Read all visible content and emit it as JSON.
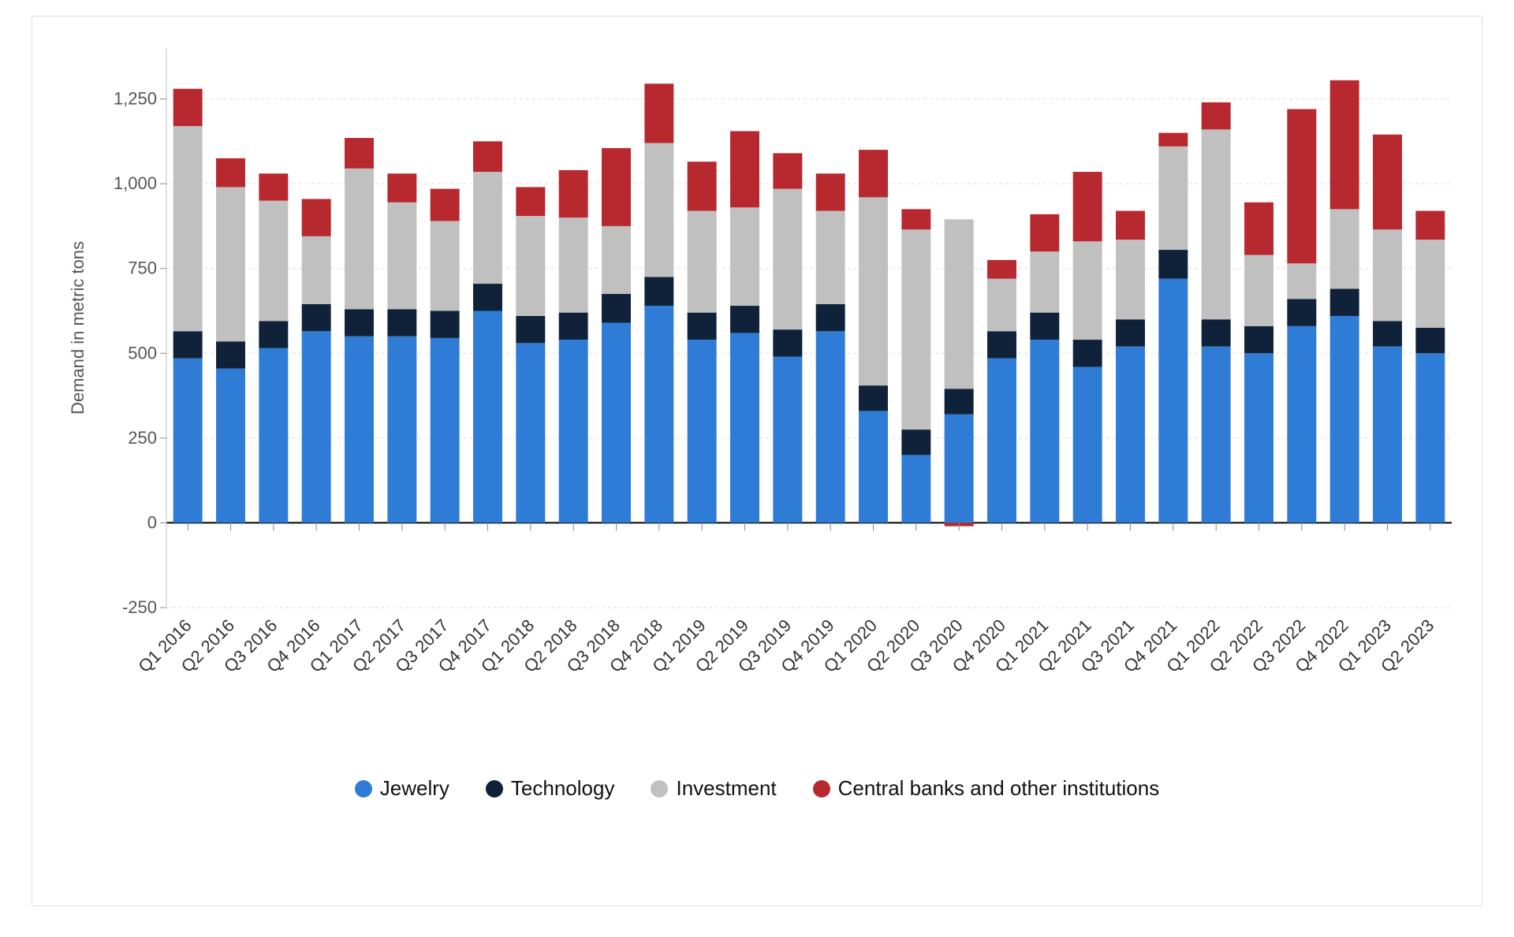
{
  "chart": {
    "type": "stacked-bar",
    "ylabel": "Demand in metric tons",
    "ylabel_fontsize": 22,
    "axis_fontsize": 22,
    "xaxis_fontsize": 22,
    "legend_fontsize": 26,
    "background_color": "#ffffff",
    "grid_color": "#dcdcdc",
    "axis_color": "#000000",
    "tick_color": "#555555",
    "text_color": "#222222",
    "ylim": [
      -250,
      1400
    ],
    "yticks": [
      -250,
      0,
      250,
      500,
      750,
      1000,
      1250
    ],
    "bar_width_ratio": 0.68,
    "series": [
      {
        "key": "jewelry",
        "label": "Jewelry",
        "color": "#2e7cd6"
      },
      {
        "key": "technology",
        "label": "Technology",
        "color": "#0f2239"
      },
      {
        "key": "investment",
        "label": "Investment",
        "color": "#c0c0c0"
      },
      {
        "key": "central",
        "label": "Central banks and other institutions",
        "color": "#b8292f"
      }
    ],
    "categories": [
      "Q1 2016",
      "Q2 2016",
      "Q3 2016",
      "Q4 2016",
      "Q1 2017",
      "Q2 2017",
      "Q3 2017",
      "Q4 2017",
      "Q1 2018",
      "Q2 2018",
      "Q3 2018",
      "Q4 2018",
      "Q1 2019",
      "Q2 2019",
      "Q3 2019",
      "Q4 2019",
      "Q1 2020",
      "Q2 2020",
      "Q3 2020",
      "Q4 2020",
      "Q1 2021",
      "Q2 2021",
      "Q3 2021",
      "Q4 2021",
      "Q1 2022",
      "Q2 2022",
      "Q3 2022",
      "Q4 2022",
      "Q1 2023",
      "Q2 2023"
    ],
    "data": {
      "jewelry": [
        485,
        455,
        515,
        565,
        550,
        550,
        545,
        625,
        530,
        540,
        590,
        640,
        540,
        560,
        490,
        565,
        330,
        200,
        320,
        485,
        540,
        460,
        520,
        720,
        520,
        500,
        580,
        610,
        520,
        500
      ],
      "technology": [
        80,
        80,
        80,
        80,
        80,
        80,
        80,
        80,
        80,
        80,
        85,
        85,
        80,
        80,
        80,
        80,
        75,
        75,
        75,
        80,
        80,
        80,
        80,
        85,
        80,
        80,
        80,
        80,
        75,
        75
      ],
      "investment": [
        605,
        455,
        355,
        200,
        415,
        315,
        265,
        330,
        295,
        280,
        200,
        395,
        300,
        290,
        415,
        275,
        555,
        590,
        500,
        155,
        180,
        290,
        235,
        305,
        560,
        210,
        105,
        235,
        270,
        260
      ],
      "central": [
        110,
        85,
        80,
        110,
        90,
        85,
        95,
        90,
        85,
        140,
        230,
        175,
        145,
        225,
        105,
        110,
        140,
        60,
        -10,
        55,
        110,
        205,
        85,
        40,
        80,
        155,
        455,
        380,
        280,
        85
      ]
    }
  }
}
